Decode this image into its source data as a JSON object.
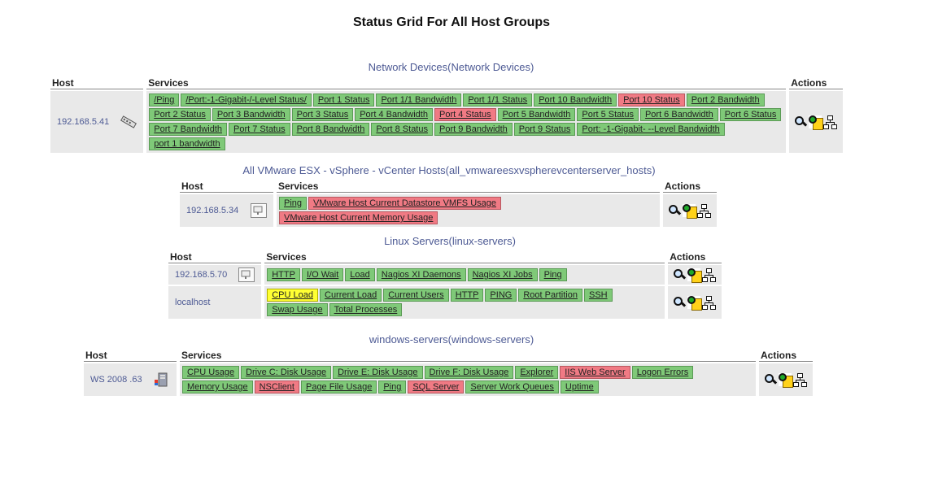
{
  "page": {
    "title": "Status Grid For All Host Groups"
  },
  "headers": {
    "host": "Host",
    "services": "Services",
    "actions": "Actions"
  },
  "colors": {
    "ok": "#7fc978",
    "critical": "#f07a84",
    "warning": "#ffff33",
    "link": "#4d5a94"
  },
  "groups": [
    {
      "alias": "Network Devices",
      "name": "Network Devices",
      "hosts": [
        {
          "name": "192.168.5.41",
          "icon": "network-switch-icon",
          "services": [
            {
              "label": "/Ping",
              "state": "ok"
            },
            {
              "label": "/Port:-1-Gigabit-/-Level Status/",
              "state": "ok"
            },
            {
              "label": "Port 1 Status",
              "state": "ok"
            },
            {
              "label": "Port 1/1 Bandwidth",
              "state": "ok"
            },
            {
              "label": "Port 1/1 Status",
              "state": "ok"
            },
            {
              "label": "Port 10 Bandwidth",
              "state": "ok"
            },
            {
              "label": "Port 10 Status",
              "state": "crit"
            },
            {
              "label": "Port 2 Bandwidth",
              "state": "ok"
            },
            {
              "label": "Port 2 Status",
              "state": "ok"
            },
            {
              "label": "Port 3 Bandwidth",
              "state": "ok"
            },
            {
              "label": "Port 3 Status",
              "state": "ok"
            },
            {
              "label": "Port 4 Bandwidth",
              "state": "ok"
            },
            {
              "label": "Port 4 Status",
              "state": "crit"
            },
            {
              "label": "Port 5 Bandwidth",
              "state": "ok"
            },
            {
              "label": "Port 5 Status",
              "state": "ok"
            },
            {
              "label": "Port 6 Bandwidth",
              "state": "ok"
            },
            {
              "label": "Port 6 Status",
              "state": "ok"
            },
            {
              "label": "Port 7 Bandwidth",
              "state": "ok"
            },
            {
              "label": "Port 7 Status",
              "state": "ok"
            },
            {
              "label": "Port 8 Bandwidth",
              "state": "ok"
            },
            {
              "label": "Port 8 Status",
              "state": "ok"
            },
            {
              "label": "Port 9 Bandwidth",
              "state": "ok"
            },
            {
              "label": "Port 9 Status",
              "state": "ok"
            },
            {
              "label": "Port: -1-Gigabit- --Level Bandwidth",
              "state": "ok"
            },
            {
              "label": "port 1 bandwidth",
              "state": "ok"
            }
          ]
        }
      ]
    },
    {
      "alias": "All VMware ESX - vSphere - vCenter Hosts",
      "name": "all_vmwareesxvspherevcenterserver_hosts",
      "hosts": [
        {
          "name": "192.168.5.34",
          "icon": "server-monitor-icon",
          "services": [
            {
              "label": "Ping",
              "state": "ok"
            },
            {
              "label": "VMware Host Current Datastore VMFS Usage",
              "state": "crit"
            },
            {
              "label": "VMware Host Current Memory Usage",
              "state": "crit"
            }
          ]
        }
      ]
    },
    {
      "alias": "Linux Servers",
      "name": "linux-servers",
      "hosts": [
        {
          "name": "192.168.5.70",
          "icon": "server-monitor-icon",
          "services": [
            {
              "label": "HTTP",
              "state": "ok"
            },
            {
              "label": "I/O Wait",
              "state": "ok"
            },
            {
              "label": "Load",
              "state": "ok"
            },
            {
              "label": "Nagios XI Daemons",
              "state": "ok"
            },
            {
              "label": "Nagios XI Jobs",
              "state": "ok"
            },
            {
              "label": "Ping",
              "state": "ok"
            }
          ]
        },
        {
          "name": "localhost",
          "icon": "",
          "services": [
            {
              "label": "CPU Load",
              "state": "warn"
            },
            {
              "label": "Current Load",
              "state": "ok"
            },
            {
              "label": "Current Users",
              "state": "ok"
            },
            {
              "label": "HTTP",
              "state": "ok"
            },
            {
              "label": "PING",
              "state": "ok"
            },
            {
              "label": "Root Partition",
              "state": "ok"
            },
            {
              "label": "SSH",
              "state": "ok"
            },
            {
              "label": "Swap Usage",
              "state": "ok"
            },
            {
              "label": "Total Processes",
              "state": "ok"
            }
          ]
        }
      ]
    },
    {
      "alias": "windows-servers",
      "name": "windows-servers",
      "hosts": [
        {
          "name": "WS 2008 .63",
          "icon": "windows-server-icon",
          "services": [
            {
              "label": "CPU Usage",
              "state": "ok"
            },
            {
              "label": "Drive C: Disk Usage",
              "state": "ok"
            },
            {
              "label": "Drive E: Disk Usage",
              "state": "ok"
            },
            {
              "label": "Drive F: Disk Usage",
              "state": "ok"
            },
            {
              "label": "Explorer",
              "state": "ok"
            },
            {
              "label": "IIS Web Server",
              "state": "crit"
            },
            {
              "label": "Logon Errors",
              "state": "ok"
            },
            {
              "label": "Memory Usage",
              "state": "ok"
            },
            {
              "label": "NSClient",
              "state": "crit"
            },
            {
              "label": "Page File Usage",
              "state": "ok"
            },
            {
              "label": "Ping",
              "state": "ok"
            },
            {
              "label": "SQL Server",
              "state": "crit"
            },
            {
              "label": "Server Work Queues",
              "state": "ok"
            },
            {
              "label": "Uptime",
              "state": "ok"
            }
          ]
        }
      ]
    }
  ],
  "actions": [
    "view-host-status-icon",
    "view-host-report-icon",
    "view-network-map-icon"
  ]
}
